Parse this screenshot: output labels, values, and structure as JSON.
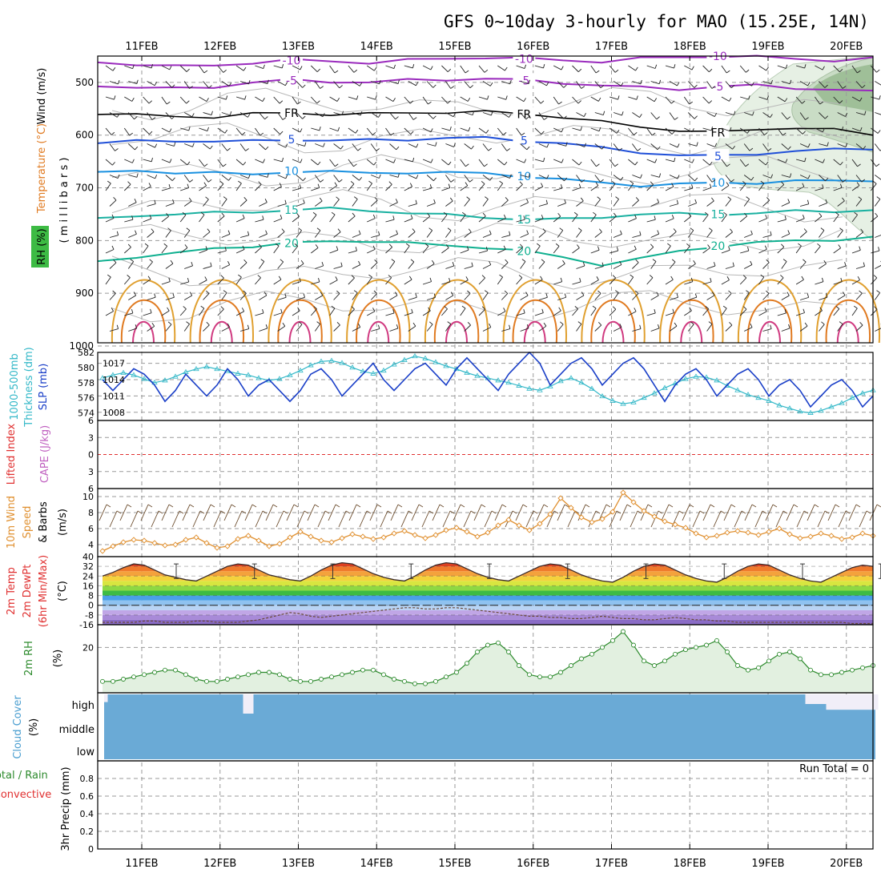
{
  "title": "GFS 0~10day 3-hourly for MAO (15.25E, 14N)",
  "date_labels": [
    "11FEB",
    "12FEB",
    "13FEB",
    "14FEB",
    "15FEB",
    "16FEB",
    "17FEB",
    "18FEB",
    "19FEB",
    "20FEB"
  ],
  "colors": {
    "frame": "#000000",
    "grid": "#9a9a9a",
    "slp": "#1a3fc8",
    "thick": "#33b8c8",
    "wind10": "#e09030",
    "rh2m": "#2c8a2c",
    "cloud": "#6aaad6",
    "cloud_bg": "#f1eef8",
    "li": "#e03030"
  },
  "chart_data": [
    {
      "type": "line",
      "name": "sounding",
      "ylabel_parts": [
        "Wind (m/s)",
        "Temperature (°C)",
        "RH (%)",
        "( m i l l i b a r s )"
      ],
      "y_ticks": [
        500,
        600,
        700,
        800,
        900,
        1000
      ],
      "ylim": [
        1000,
        450
      ],
      "temperature_isotherms": [
        {
          "label": "-10",
          "color": "#9a2bbd",
          "p": [
            462,
            465,
            470,
            468,
            462,
            458,
            460,
            462,
            458,
            455,
            452,
            455,
            458,
            460,
            455,
            452,
            450,
            452,
            455,
            458,
            455
          ]
        },
        {
          "label": "-5",
          "color": "#9a2bbd",
          "p": [
            505,
            510,
            512,
            508,
            500,
            496,
            498,
            500,
            496,
            494,
            493,
            496,
            500,
            506,
            510,
            512,
            508,
            506,
            510,
            514,
            518
          ]
        },
        {
          "label": "FR",
          "color": "#000000",
          "p": [
            558,
            562,
            565,
            565,
            560,
            558,
            560,
            560,
            558,
            556,
            556,
            560,
            565,
            575,
            585,
            590,
            595,
            590,
            585,
            590,
            600
          ]
        },
        {
          "label": "5",
          "color": "#1f4fd8",
          "p": [
            615,
            612,
            610,
            612,
            612,
            608,
            610,
            610,
            608,
            605,
            606,
            610,
            615,
            625,
            632,
            638,
            640,
            635,
            630,
            628,
            625
          ]
        },
        {
          "label": "10",
          "color": "#1890e0",
          "p": [
            672,
            668,
            670,
            672,
            675,
            668,
            670,
            672,
            670,
            672,
            672,
            678,
            685,
            690,
            695,
            694,
            690,
            690,
            688,
            686,
            685
          ]
        },
        {
          "label": "15",
          "color": "#18b0a0",
          "p": [
            760,
            752,
            750,
            748,
            745,
            742,
            740,
            742,
            748,
            752,
            755,
            760,
            760,
            755,
            750,
            750,
            750,
            748,
            745,
            744,
            742
          ]
        },
        {
          "label": "20",
          "color": "#10b090",
          "p": [
            840,
            830,
            825,
            815,
            810,
            805,
            802,
            800,
            805,
            810,
            812,
            820,
            832,
            845,
            835,
            820,
            810,
            805,
            800,
            798,
            795
          ]
        }
      ],
      "rh_shading": [
        "10",
        "20",
        "30",
        "40",
        "50"
      ]
    },
    {
      "type": "line",
      "name": "pressure",
      "ylabel_parts": [
        "1000-500mb",
        "Thickness (dm)",
        "SLP (mb)"
      ],
      "left_ticks": [
        574,
        576,
        578,
        580,
        582
      ],
      "right_ticks": [
        1008,
        1011,
        1014,
        1017
      ],
      "slp_range": [
        1006.5,
        1019
      ],
      "thick_range": [
        573,
        582
      ],
      "series": [
        {
          "name": "SLP (mb)",
          "color": "#1a3fc8",
          "values": [
            1014,
            1012,
            1014,
            1016,
            1015,
            1013,
            1010,
            1012,
            1015,
            1013,
            1011,
            1013,
            1016,
            1014,
            1011,
            1013,
            1014,
            1012,
            1010,
            1012,
            1015,
            1016,
            1014,
            1011,
            1013,
            1015,
            1017,
            1014,
            1012,
            1014,
            1016,
            1017,
            1015,
            1013,
            1016,
            1018,
            1016,
            1014,
            1012,
            1015,
            1017,
            1019,
            1017,
            1013,
            1015,
            1017,
            1018,
            1016,
            1013,
            1015,
            1017,
            1018,
            1016,
            1013,
            1010,
            1013,
            1015,
            1016,
            1014,
            1011,
            1013,
            1015,
            1016,
            1014,
            1011,
            1013,
            1014,
            1012,
            1009,
            1011,
            1013,
            1014,
            1012,
            1009,
            1011
          ]
        },
        {
          "name": "1000-500mb Thickness (dm)",
          "color": "#33b8c8",
          "values": [
            578.6,
            579.0,
            579.3,
            579.0,
            578.5,
            578.0,
            578.3,
            578.8,
            579.4,
            579.8,
            580.1,
            579.8,
            579.5,
            579.2,
            579.0,
            578.6,
            578.3,
            578.5,
            579.0,
            579.6,
            580.3,
            580.8,
            580.9,
            580.6,
            580.0,
            579.5,
            579.2,
            579.6,
            580.4,
            581.0,
            581.5,
            581.2,
            580.7,
            580.2,
            579.8,
            579.3,
            578.9,
            578.6,
            578.3,
            578.0,
            577.6,
            577.2,
            577.0,
            577.5,
            578.2,
            578.6,
            578.0,
            577.2,
            576.2,
            575.6,
            575.2,
            575.4,
            576.0,
            576.6,
            577.3,
            577.9,
            578.5,
            578.8,
            578.7,
            578.3,
            577.6,
            577.0,
            576.4,
            576.0,
            575.6,
            575.0,
            574.6,
            574.2,
            574.0,
            574.3,
            574.8,
            575.3,
            576.0,
            576.6,
            577.0
          ]
        }
      ]
    },
    {
      "type": "line",
      "name": "stability",
      "ylabel_parts": [
        "Lifted Index",
        "CAPE (J/kg)"
      ],
      "y_ticks": [
        6,
        3,
        0,
        -3,
        -6
      ],
      "ylim": [
        -6,
        6
      ],
      "series": [
        {
          "name": "Lifted Index",
          "values": []
        }
      ]
    },
    {
      "type": "line",
      "name": "wind10m",
      "ylabel_parts": [
        "10m Wind",
        "Speed",
        "& Barbs",
        "(m/s)"
      ],
      "y_ticks": [
        4,
        6,
        8,
        10
      ],
      "ylim": [
        2.5,
        11
      ],
      "series": [
        {
          "name": "10m Wind Speed",
          "color": "#e09030",
          "values": [
            3.2,
            3.8,
            4.3,
            4.6,
            4.5,
            4.2,
            3.9,
            4.0,
            4.6,
            4.9,
            4.2,
            3.6,
            3.8,
            4.7,
            5.1,
            4.5,
            3.8,
            4.1,
            4.9,
            5.6,
            5.0,
            4.5,
            4.3,
            4.8,
            5.3,
            5.0,
            4.7,
            4.9,
            5.4,
            5.7,
            5.2,
            4.8,
            5.2,
            5.8,
            6.1,
            5.6,
            5.0,
            5.5,
            6.4,
            7.1,
            6.4,
            5.8,
            6.6,
            7.8,
            9.8,
            8.6,
            7.4,
            6.8,
            7.2,
            8.1,
            10.5,
            9.3,
            8.2,
            7.5,
            6.9,
            6.5,
            6.1,
            5.4,
            4.9,
            5.1,
            5.5,
            5.7,
            5.5,
            5.2,
            5.6,
            6.0,
            5.3,
            4.8,
            5.0,
            5.4,
            5.1,
            4.7,
            4.9,
            5.4,
            5.1
          ]
        }
      ]
    },
    {
      "type": "area",
      "name": "temp2m",
      "ylabel_parts": [
        "2m Temp",
        "2m DewPt",
        "(6hr Min/Max)",
        "(°C)"
      ],
      "y_ticks": [
        -16,
        -8,
        0,
        8,
        16,
        24,
        32,
        40
      ],
      "ylim": [
        -16,
        40
      ],
      "series": [
        {
          "name": "2m Temp",
          "values": [
            24,
            27,
            31,
            34,
            33,
            29,
            25,
            23,
            21,
            20,
            24,
            28,
            32,
            34,
            33,
            29,
            25,
            23,
            21,
            20,
            24,
            29,
            33,
            35,
            34,
            30,
            26,
            23,
            21,
            20,
            24,
            29,
            33,
            35,
            34,
            30,
            26,
            23,
            21,
            20,
            24,
            28,
            32,
            34,
            33,
            29,
            25,
            22,
            20,
            19,
            23,
            28,
            32,
            34,
            33,
            29,
            25,
            22,
            20,
            19,
            23,
            28,
            32,
            34,
            33,
            29,
            25,
            22,
            20,
            19,
            23,
            27,
            31,
            33,
            32
          ]
        },
        {
          "name": "2m DewPt",
          "values": [
            -14,
            -14,
            -14,
            -14,
            -13,
            -13,
            -14,
            -14,
            -14,
            -13,
            -13,
            -14,
            -14,
            -14,
            -13,
            -12,
            -10,
            -8,
            -6,
            -7,
            -9,
            -10,
            -9,
            -8,
            -7,
            -6,
            -5,
            -4,
            -3,
            -2,
            -2,
            -3,
            -3,
            -2,
            -2,
            -3,
            -4,
            -5,
            -6,
            -7,
            -8,
            -9,
            -9,
            -10,
            -10,
            -11,
            -11,
            -10,
            -9,
            -10,
            -11,
            -11,
            -12,
            -12,
            -11,
            -10,
            -11,
            -12,
            -12,
            -13,
            -13,
            -14,
            -14,
            -14,
            -14,
            -14,
            -14,
            -14,
            -14,
            -14,
            -14,
            -14,
            -15,
            -15,
            -15
          ]
        }
      ]
    },
    {
      "type": "area",
      "name": "rh2m",
      "ylabel_parts": [
        "2m RH",
        "(%)"
      ],
      "y_ticks": [
        20
      ],
      "ylim": [
        0,
        30
      ],
      "series": [
        {
          "name": "2m RH",
          "color": "#2c8a2c",
          "values": [
            5,
            5,
            6,
            7,
            8,
            9,
            10,
            10,
            8,
            6,
            5,
            5,
            6,
            7,
            8,
            9,
            9,
            8,
            6,
            5,
            5,
            6,
            7,
            8,
            9,
            10,
            10,
            8,
            6,
            5,
            4,
            4,
            5,
            7,
            9,
            13,
            18,
            21,
            22,
            18,
            12,
            8,
            7,
            7,
            9,
            12,
            15,
            17,
            20,
            23,
            27,
            21,
            14,
            12,
            14,
            17,
            19,
            20,
            21,
            23,
            18,
            12,
            10,
            11,
            14,
            17,
            18,
            15,
            10,
            8,
            8,
            9,
            10,
            11,
            12
          ]
        }
      ]
    },
    {
      "type": "heatmap",
      "name": "cloud",
      "ylabel_parts": [
        "Cloud Cover",
        "(%)"
      ],
      "levels": [
        "high",
        "middle",
        "low"
      ],
      "high_gaps": [
        [
          0,
          1,
          0.4
        ],
        [
          14,
          15,
          1.0
        ],
        [
          68,
          70,
          0.5
        ],
        [
          70,
          75,
          0.8
        ],
        [
          79,
          81,
          1.0
        ],
        [
          86,
          88,
          1.0
        ],
        [
          90,
          92,
          0.8
        ]
      ],
      "mid_gaps": [
        [
          80,
          82,
          0.6
        ],
        [
          82,
          85,
          0.5
        ]
      ]
    },
    {
      "type": "bar",
      "name": "precip",
      "ylabel_parts": [
        "Total / Rain",
        "Convective",
        "3hr Precip (mm)"
      ],
      "y_ticks": [
        0,
        0.2,
        0.4,
        0.6,
        0.8
      ],
      "ylim": [
        0,
        1.0
      ],
      "run_total": "Run Total = 0",
      "series": [
        {
          "name": "3hr Precip",
          "values": []
        }
      ]
    }
  ]
}
